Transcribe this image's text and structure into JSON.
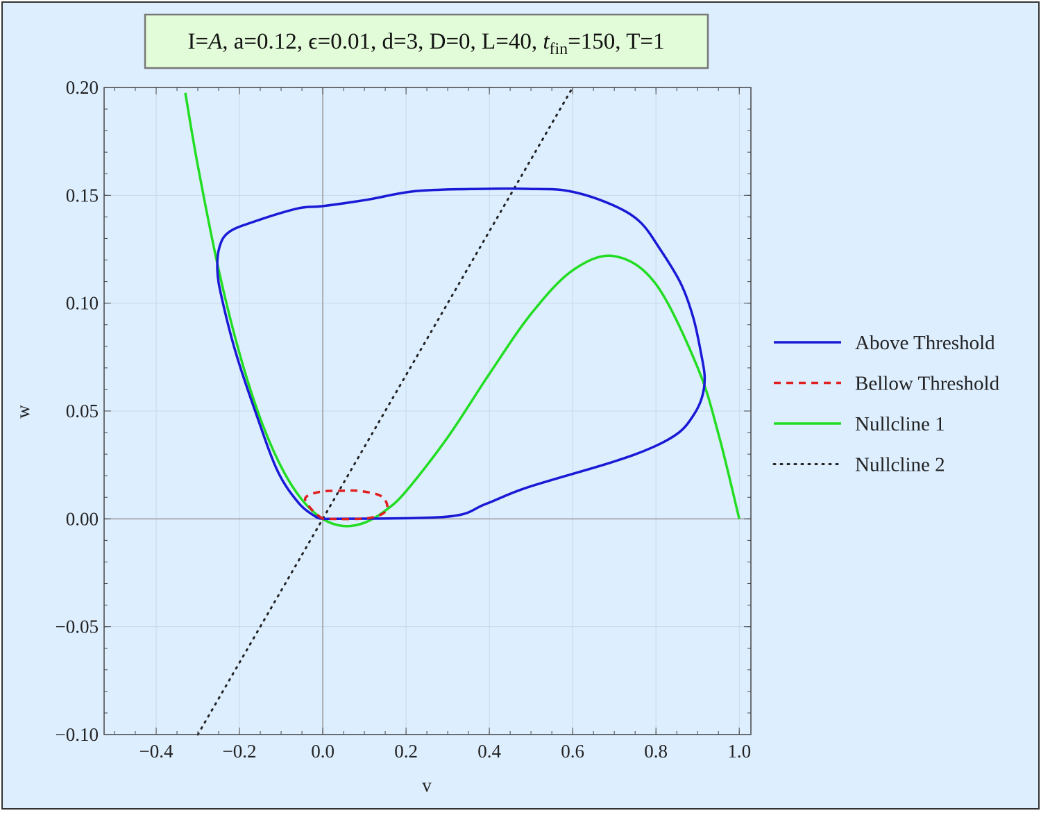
{
  "colors": {
    "background": "#ddeeff",
    "title_box": "#e2fbd8",
    "above": "#1a1ad6",
    "below": "#e02020",
    "nullcline1": "#22dd22",
    "nullcline2": "#222222"
  },
  "chart_data": {
    "type": "line",
    "title_parts": [
      "I=",
      "A",
      ", a=0.12, ϵ=0.01, d=3, D=0, L=40, ",
      "t",
      "fin",
      "=150, T=1"
    ],
    "xlabel": "v",
    "ylabel": "w",
    "xlim": [
      -0.525,
      1.028
    ],
    "ylim": [
      -0.1,
      0.2
    ],
    "xticks": [
      -0.4,
      -0.2,
      0.0,
      0.2,
      0.4,
      0.6,
      0.8,
      1.0
    ],
    "xtick_labels": [
      "−0.4",
      "−0.2",
      "0.0",
      "0.2",
      "0.4",
      "0.6",
      "0.8",
      "1.0"
    ],
    "yticks": [
      -0.1,
      -0.05,
      0.0,
      0.05,
      0.1,
      0.15,
      0.2
    ],
    "ytick_labels": [
      "−0.10",
      "−0.05",
      "0.00",
      "0.05",
      "0.10",
      "0.15",
      "0.20"
    ],
    "grid": true,
    "legend_position": "right-outside",
    "series": [
      {
        "name": "Above Threshold",
        "style": "solid",
        "color": "#1a1ad6",
        "points": [
          [
            0,
            0
          ],
          [
            0.297,
            0.001
          ],
          [
            0.39,
            0.0068
          ],
          [
            0.49,
            0.0145
          ],
          [
            0.69,
            0.026
          ],
          [
            0.79,
            0.033
          ],
          [
            0.855,
            0.04
          ],
          [
            0.89,
            0.048
          ],
          [
            0.91,
            0.056
          ],
          [
            0.917,
            0.065
          ],
          [
            0.91,
            0.075
          ],
          [
            0.89,
            0.093
          ],
          [
            0.86,
            0.109
          ],
          [
            0.81,
            0.125
          ],
          [
            0.76,
            0.138
          ],
          [
            0.69,
            0.146
          ],
          [
            0.59,
            0.152
          ],
          [
            0.49,
            0.153
          ],
          [
            0.39,
            0.153
          ],
          [
            0.225,
            0.152
          ],
          [
            0.108,
            0.148
          ],
          [
            0,
            0.145
          ],
          [
            -0.058,
            0.144
          ],
          [
            -0.162,
            0.138
          ],
          [
            -0.225,
            0.133
          ],
          [
            -0.248,
            0.126
          ],
          [
            -0.253,
            0.115
          ],
          [
            -0.242,
            0.102
          ],
          [
            -0.208,
            0.0765
          ],
          [
            -0.158,
            0.0476
          ],
          [
            -0.108,
            0.022
          ],
          [
            -0.058,
            0.0074
          ],
          [
            -0.017,
            0.001
          ],
          [
            0,
            0
          ]
        ]
      },
      {
        "name": "Bellow Threshold",
        "style": "dashed",
        "color": "#e02020",
        "points": [
          [
            0,
            0
          ],
          [
            -0.025,
            0.004
          ],
          [
            -0.042,
            0.0096
          ],
          [
            -0.008,
            0.0125
          ],
          [
            0.042,
            0.013
          ],
          [
            0.09,
            0.0129
          ],
          [
            0.142,
            0.0103
          ],
          [
            0.153,
            0.004
          ],
          [
            0.108,
            0.0003
          ],
          [
            0,
            0
          ]
        ]
      },
      {
        "name": "Nullcline 1",
        "style": "solid",
        "color": "#22dd22",
        "points": [
          [
            -0.33,
            0.1975
          ],
          [
            -0.3,
            0.1638
          ],
          [
            -0.25,
            0.1156
          ],
          [
            -0.2,
            0.0768
          ],
          [
            -0.15,
            0.0466
          ],
          [
            -0.1,
            0.0242
          ],
          [
            -0.05,
            0.0089
          ],
          [
            0,
            0
          ],
          [
            0.05,
            -0.0033
          ],
          [
            0.1,
            -0.0018
          ],
          [
            0.15,
            0.0038
          ],
          [
            0.2,
            0.0128
          ],
          [
            0.3,
            0.0378
          ],
          [
            0.4,
            0.0672
          ],
          [
            0.5,
            0.095
          ],
          [
            0.6,
            0.1152
          ],
          [
            0.7,
            0.1218
          ],
          [
            0.8,
            0.1088
          ],
          [
            0.9,
            0.0702
          ],
          [
            0.95,
            0.0394
          ],
          [
            1.0,
            0
          ]
        ]
      },
      {
        "name": "Nullcline 2",
        "style": "dotted",
        "color": "#222222",
        "points": [
          [
            -0.3,
            -0.1
          ],
          [
            0.6,
            0.2
          ]
        ]
      }
    ]
  }
}
